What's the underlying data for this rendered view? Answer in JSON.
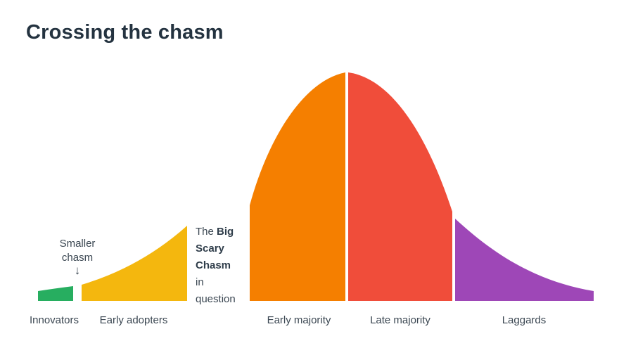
{
  "title": "Crossing the chasm",
  "colors": {
    "innovators": "#27ae60",
    "early_adopters": "#f4b70e",
    "early_majority": "#f57f00",
    "late_majority": "#f04d3a",
    "laggards": "#9e47b7"
  },
  "annotations": {
    "smaller_chasm_line1": "Smaller",
    "smaller_chasm_line2": "chasm",
    "smaller_chasm_arrow": "↓",
    "big_chasm_prefix": "The",
    "big_chasm_bold1": "Big",
    "big_chasm_bold2": "Scary",
    "big_chasm_bold3": "Chasm",
    "big_chasm_suffix1": "in",
    "big_chasm_suffix2": "question"
  },
  "categories": [
    {
      "label": "Innovators"
    },
    {
      "label": "Early adopters"
    },
    {
      "label": "Early majority"
    },
    {
      "label": "Late majority"
    },
    {
      "label": "Laggards"
    }
  ]
}
